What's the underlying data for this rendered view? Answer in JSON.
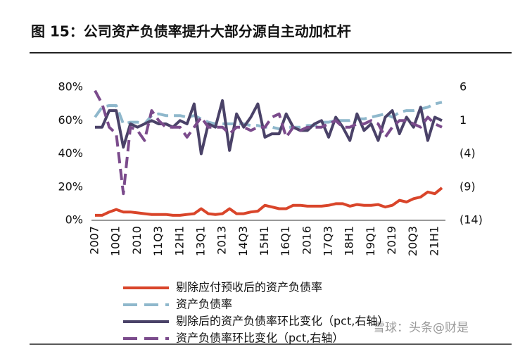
{
  "chart_data": {
    "type": "line",
    "title": "图 15：公司资产负债率提升大部分源自主动加杠杆",
    "watermark": "雪球：头条@财是",
    "categories": [
      "2007",
      null,
      null,
      "10Q1",
      null,
      null,
      "2010",
      null,
      null,
      "11Q3",
      null,
      null,
      "12H1",
      null,
      null,
      "13Q1",
      null,
      null,
      "2013",
      null,
      null,
      "14Q3",
      null,
      null,
      "15H1",
      null,
      null,
      "16Q1",
      null,
      null,
      "2016",
      null,
      null,
      "17Q3",
      null,
      null,
      "18H1",
      null,
      null,
      "19Q1",
      null,
      null,
      "2019",
      null,
      null,
      "20Q3",
      null,
      null,
      "21H1",
      null
    ],
    "series": [
      {
        "name": "剔除应付预收后的资产负债率",
        "color": "#d9452a",
        "dashed": false,
        "values": [
          3,
          3,
          5,
          6.5,
          5,
          5,
          4.5,
          4,
          3.5,
          3.5,
          3.5,
          3,
          3,
          3.5,
          4,
          7,
          4,
          3.5,
          4,
          7,
          4,
          4,
          5,
          5.5,
          9,
          8,
          7,
          7,
          9,
          9,
          8.5,
          8.5,
          8.5,
          9,
          10,
          10,
          8.5,
          9.5,
          9,
          9,
          9.5,
          8,
          9,
          12,
          11,
          13,
          14,
          17,
          16,
          19.5
        ]
      },
      {
        "name": "资产负债率",
        "color": "#8fb8cc",
        "dashed": true,
        "values": [
          62,
          68,
          69,
          69,
          58,
          59,
          59,
          58,
          63,
          64,
          63,
          63,
          63,
          62,
          63,
          61,
          59,
          58,
          58,
          58,
          58,
          58,
          57,
          57,
          56,
          56,
          55,
          56,
          56,
          56,
          57,
          57,
          59,
          59,
          60,
          60,
          60,
          61,
          61,
          62,
          63,
          64,
          62,
          65,
          66,
          66,
          67,
          68,
          70,
          71
        ]
      },
      {
        "name": "剔除后的资产负债率环比变化（pct,右轴）",
        "color": "#4a4268",
        "dashed": false,
        "axis": "y2",
        "values": [
          0,
          0,
          2.5,
          2.5,
          -3,
          0.5,
          0,
          0.5,
          1,
          0.5,
          0.5,
          0,
          1,
          0.5,
          3.5,
          -4,
          0.5,
          0,
          4,
          -3.5,
          2,
          0,
          1.5,
          3.5,
          -1.5,
          -1,
          -1,
          2,
          0,
          -0.5,
          -0.5,
          0.5,
          1,
          -1.5,
          1.5,
          0,
          -2,
          2,
          -0.5,
          0.5,
          -2,
          1.5,
          2.5,
          -1,
          1.5,
          0,
          3,
          -2,
          1.5,
          1
        ]
      },
      {
        "name": "资产负债率环比变化（pct,右轴）",
        "color": "#7b4b8c",
        "dashed": true,
        "axis": "y2",
        "values": [
          5.5,
          3.5,
          0,
          -1,
          -10,
          0,
          -0.5,
          -2,
          2.5,
          1,
          0,
          0,
          0,
          -1.5,
          0,
          1.5,
          0,
          0,
          0,
          -1,
          0,
          0,
          -0.5,
          0,
          0,
          1.5,
          2,
          -1.5,
          0,
          -0.5,
          0,
          0,
          0,
          0.5,
          1,
          0,
          0,
          0.5,
          0.5,
          1,
          0.5,
          -1.5,
          0,
          1,
          1,
          0.5,
          0,
          1.5,
          0.5,
          0
        ]
      }
    ],
    "ylim": [
      0,
      80
    ],
    "yticks": [
      {
        "value": 0,
        "label": "0%"
      },
      {
        "value": 20,
        "label": "20%"
      },
      {
        "value": 40,
        "label": "40%"
      },
      {
        "value": 60,
        "label": "60%"
      },
      {
        "value": 80,
        "label": "80%"
      }
    ],
    "y2lim": [
      -14,
      6
    ],
    "y2ticks": [
      {
        "value": -14,
        "label": "(14)"
      },
      {
        "value": -9,
        "label": "(9)"
      },
      {
        "value": -4,
        "label": "(4)"
      },
      1,
      6
    ],
    "grid": false
  }
}
